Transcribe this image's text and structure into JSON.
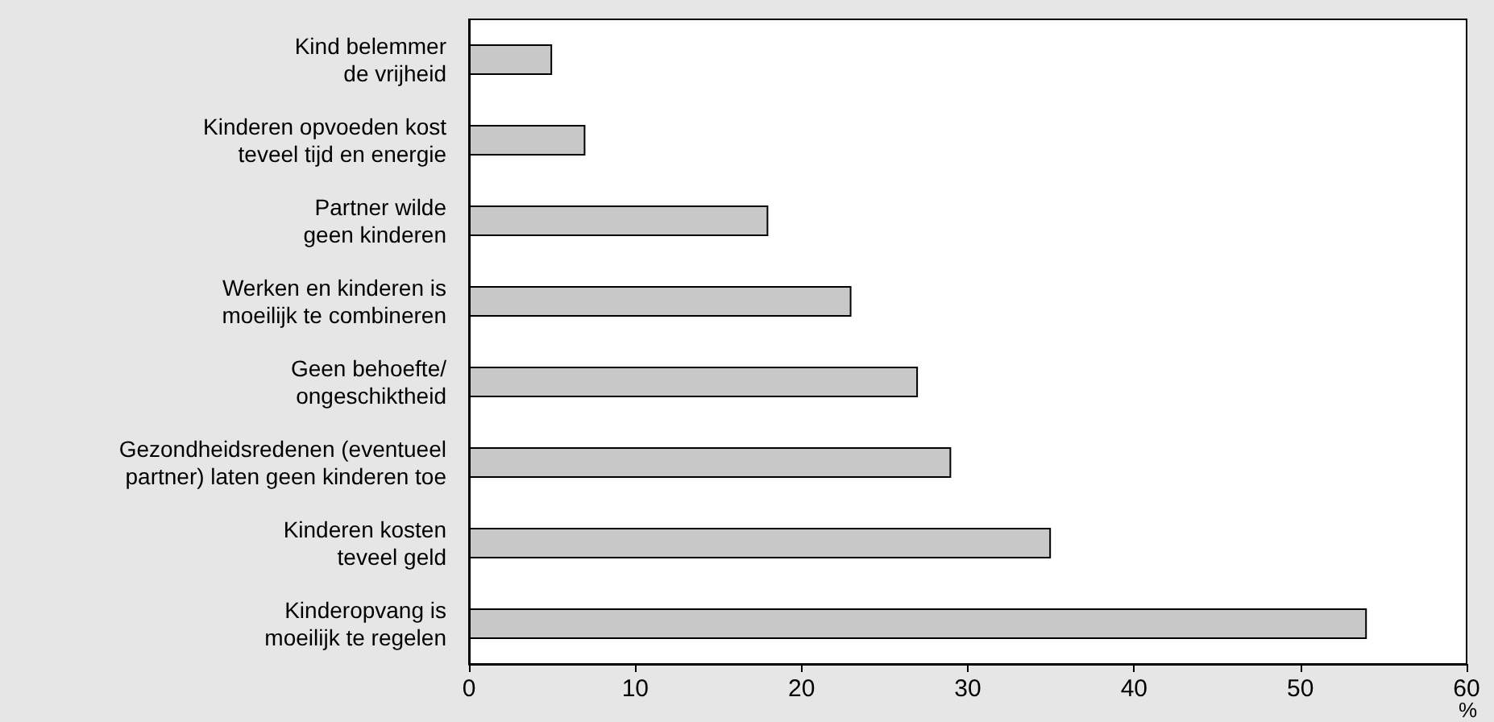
{
  "chart_data": {
    "type": "bar",
    "orientation": "horizontal",
    "categories": [
      "Kind belemmer\nde vrijheid",
      "Kinderen opvoeden kost\nteveel tijd en energie",
      "Partner wilde\ngeen kinderen",
      "Werken en kinderen is\nmoeilijk te combineren",
      "Geen behoefte/\nongeschiktheid",
      "Gezondheidsredenen (eventueel\npartner) laten geen kinderen toe",
      "Kinderen kosten\nteveel geld",
      "Kinderopvang is\nmoeilijk te regelen"
    ],
    "values": [
      5,
      7,
      18,
      23,
      27,
      29,
      35,
      54
    ],
    "color": "#c8c8c8",
    "xlabel": "%",
    "xlim": [
      0,
      60
    ],
    "xticks": [
      0,
      10,
      20,
      30,
      40,
      50,
      60
    ],
    "grid": false
  }
}
